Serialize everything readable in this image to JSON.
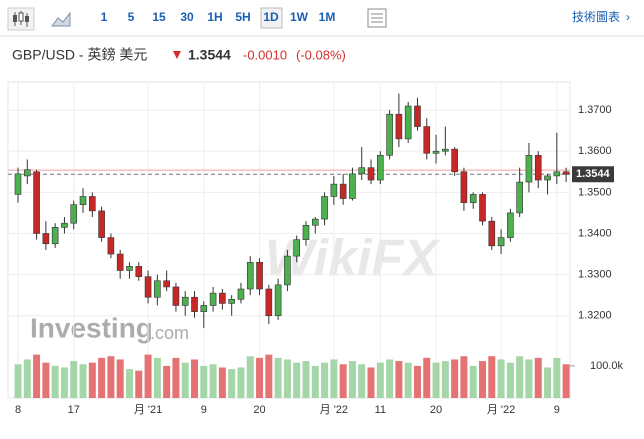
{
  "toolbar": {
    "intervals": [
      "1",
      "5",
      "15",
      "30",
      "1H",
      "5H",
      "1D",
      "1W",
      "1M"
    ],
    "selected_index": 6,
    "link": "技術圖表"
  },
  "header": {
    "symbol": "GBP/USD - 英鎊 美元",
    "price": "1.3544",
    "change": "-0.0010",
    "change_pct": "(-0.08%)"
  },
  "chart_data": {
    "type": "candlestick",
    "logo": "Investing",
    "logo_suffix": ".com",
    "watermark": "WikiFX",
    "categories": [
      "8",
      null,
      null,
      null,
      null,
      null,
      "17",
      null,
      null,
      null,
      null,
      null,
      null,
      null,
      "月 '21",
      null,
      null,
      null,
      null,
      null,
      "9",
      null,
      null,
      null,
      null,
      null,
      "20",
      null,
      null,
      null,
      null,
      null,
      null,
      null,
      "月 '22",
      null,
      null,
      null,
      null,
      "11",
      null,
      null,
      null,
      null,
      null,
      "20",
      null,
      null,
      null,
      null,
      null,
      null,
      "月 '22",
      null,
      null,
      null,
      null,
      null,
      "9",
      null
    ],
    "open": [
      1.3495,
      1.354,
      1.355,
      1.34,
      1.3375,
      1.3415,
      1.3425,
      1.347,
      1.349,
      1.3455,
      1.339,
      1.335,
      1.331,
      1.332,
      1.3295,
      1.3245,
      1.3285,
      1.327,
      1.3225,
      1.3245,
      1.321,
      1.3225,
      1.3255,
      1.323,
      1.324,
      1.3265,
      1.333,
      1.3265,
      1.32,
      1.3275,
      1.3345,
      1.3385,
      1.342,
      1.3435,
      1.349,
      1.352,
      1.3485,
      1.3545,
      1.356,
      1.353,
      1.359,
      1.369,
      1.363,
      1.371,
      1.366,
      1.3595,
      1.36,
      1.3605,
      1.355,
      1.3475,
      1.3495,
      1.343,
      1.337,
      1.339,
      1.345,
      1.3525,
      1.359,
      1.353,
      1.354,
      1.355
    ],
    "high": [
      1.356,
      1.358,
      1.3555,
      1.343,
      1.3425,
      1.344,
      1.348,
      1.351,
      1.35,
      1.3465,
      1.34,
      1.336,
      1.333,
      1.333,
      1.331,
      1.33,
      1.331,
      1.328,
      1.326,
      1.326,
      1.3235,
      1.327,
      1.3265,
      1.325,
      1.328,
      1.3345,
      1.334,
      1.3275,
      1.329,
      1.336,
      1.3395,
      1.343,
      1.344,
      1.35,
      1.354,
      1.3545,
      1.356,
      1.361,
      1.358,
      1.36,
      1.37,
      1.374,
      1.372,
      1.373,
      1.368,
      1.364,
      1.366,
      1.361,
      1.356,
      1.35,
      1.35,
      1.344,
      1.341,
      1.346,
      1.356,
      1.362,
      1.36,
      1.3545,
      1.3645,
      1.356
    ],
    "low": [
      1.3475,
      1.352,
      1.3385,
      1.336,
      1.3365,
      1.34,
      1.341,
      1.345,
      1.344,
      1.338,
      1.334,
      1.329,
      1.329,
      1.3285,
      1.323,
      1.3225,
      1.326,
      1.321,
      1.32,
      1.3195,
      1.317,
      1.321,
      1.3215,
      1.32,
      1.323,
      1.325,
      1.325,
      1.318,
      1.319,
      1.326,
      1.333,
      1.337,
      1.34,
      1.342,
      1.347,
      1.347,
      1.348,
      1.353,
      1.352,
      1.352,
      1.358,
      1.361,
      1.362,
      1.365,
      1.358,
      1.357,
      1.359,
      1.354,
      1.3455,
      1.346,
      1.342,
      1.336,
      1.335,
      1.338,
      1.344,
      1.35,
      1.351,
      1.3495,
      1.352,
      1.3525
    ],
    "close": [
      1.3545,
      1.3555,
      1.34,
      1.3375,
      1.3415,
      1.3425,
      1.347,
      1.349,
      1.3455,
      1.339,
      1.335,
      1.331,
      1.332,
      1.3295,
      1.3245,
      1.3285,
      1.327,
      1.3225,
      1.3245,
      1.321,
      1.3225,
      1.3255,
      1.323,
      1.324,
      1.3265,
      1.333,
      1.3265,
      1.32,
      1.3275,
      1.3345,
      1.3385,
      1.342,
      1.3435,
      1.349,
      1.352,
      1.3485,
      1.3545,
      1.356,
      1.353,
      1.359,
      1.369,
      1.363,
      1.371,
      1.366,
      1.3595,
      1.36,
      1.3605,
      1.355,
      1.3475,
      1.3495,
      1.343,
      1.337,
      1.339,
      1.345,
      1.3525,
      1.359,
      1.353,
      1.354,
      1.355,
      1.3544
    ],
    "volume": [
      105000,
      120000,
      135000,
      110000,
      100000,
      95000,
      115000,
      105000,
      110000,
      125000,
      130000,
      120000,
      90000,
      85000,
      135000,
      125000,
      100000,
      125000,
      110000,
      120000,
      100000,
      105000,
      95000,
      90000,
      95000,
      130000,
      125000,
      135000,
      125000,
      120000,
      110000,
      115000,
      100000,
      110000,
      120000,
      105000,
      115000,
      105000,
      95000,
      110000,
      120000,
      115000,
      110000,
      100000,
      125000,
      110000,
      115000,
      120000,
      130000,
      100000,
      115000,
      130000,
      120000,
      110000,
      130000,
      120000,
      125000,
      95000,
      125000,
      105000
    ],
    "up_color": "#4caf50",
    "down_color": "#c62828",
    "volume_up_color": "#a5d6a7",
    "volume_down_color": "#e57373",
    "ylim": [
      1.3,
      1.3761
    ],
    "yticks": [
      {
        "value": 1.32,
        "label": "1.3200"
      },
      {
        "value": 1.33,
        "label": "1.3300"
      },
      {
        "value": 1.34,
        "label": "1.3400"
      },
      {
        "value": 1.35,
        "label": "1.3500"
      },
      {
        "value": 1.36,
        "label": "1.3600"
      },
      {
        "value": 1.37,
        "label": "1.3700"
      }
    ],
    "y2lim": [
      0,
      165000
    ],
    "y2ticks": [
      {
        "value": 100000,
        "label": "100.0k"
      }
    ],
    "last": 1.3544,
    "prev_close": 1.3554,
    "grid": true
  }
}
